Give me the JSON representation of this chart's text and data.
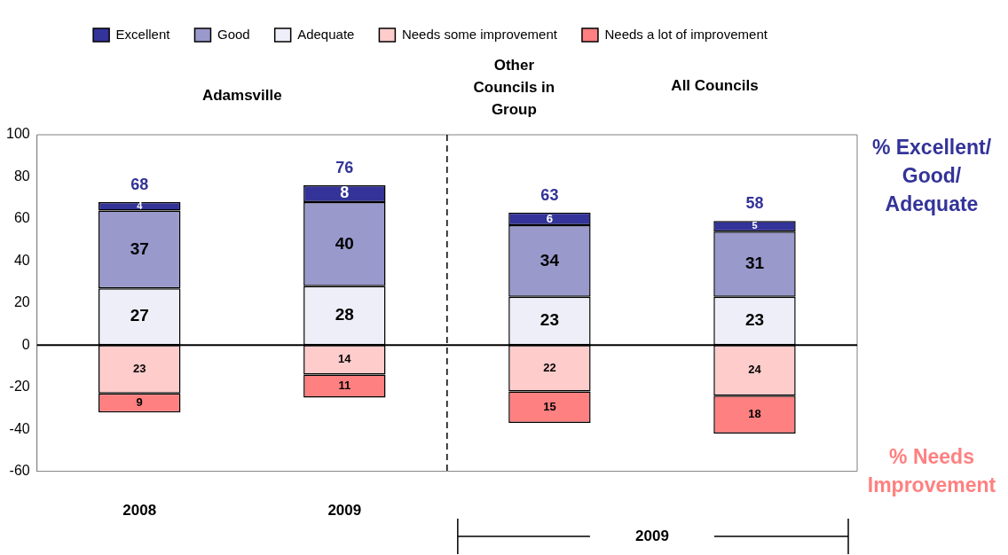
{
  "chart_data": {
    "type": "bar",
    "categories": [
      "2008",
      "2009",
      null,
      null
    ],
    "series": [
      {
        "name": "Excellent",
        "color": "#333399",
        "values": [
          4,
          8,
          6,
          5
        ],
        "base": [
          64,
          68,
          57,
          54
        ],
        "value_labels": [
          "4",
          "8",
          "6",
          "5"
        ]
      },
      {
        "name": "Good",
        "color": "#9999cc",
        "values": [
          37,
          40,
          34,
          31
        ],
        "base": [
          27,
          28,
          23,
          23
        ],
        "value_labels": [
          "37",
          "40",
          "34",
          "31"
        ]
      },
      {
        "name": "Adequate",
        "color": "#eeeef8",
        "values": [
          27,
          28,
          23,
          23
        ],
        "base": [
          0,
          0,
          0,
          0
        ],
        "value_labels": [
          "27",
          "28",
          "23",
          "23"
        ]
      },
      {
        "name": "Needs some improvement",
        "color": "#ffcccc",
        "values": [
          23,
          14,
          22,
          24
        ],
        "base": [
          -23,
          -14,
          -22,
          -24
        ],
        "value_labels": [
          "23",
          "14",
          "22",
          "24"
        ]
      },
      {
        "name": "Needs a lot of improvement",
        "color": "#ff8080",
        "values": [
          9,
          11,
          15,
          18
        ],
        "base": [
          -32,
          -25,
          -37,
          -42
        ],
        "value_labels": [
          "9",
          "11",
          "15",
          "18"
        ]
      }
    ],
    "ylim": [
      -60,
      100
    ],
    "yticks": [
      -60,
      -40,
      -20,
      0,
      20,
      40,
      60,
      80,
      100
    ],
    "grid": false,
    "legend": "top",
    "ref_lines": [
      {
        "axis": "y",
        "value": 0,
        "color": "#000000"
      }
    ],
    "annotations": [
      "Adamsville",
      "Other Councils in Group",
      "All Councils",
      "2009",
      "% Excellent/ Good/ Adequate",
      "% Needs Improvement",
      "68",
      "76",
      "63",
      "58"
    ]
  }
}
